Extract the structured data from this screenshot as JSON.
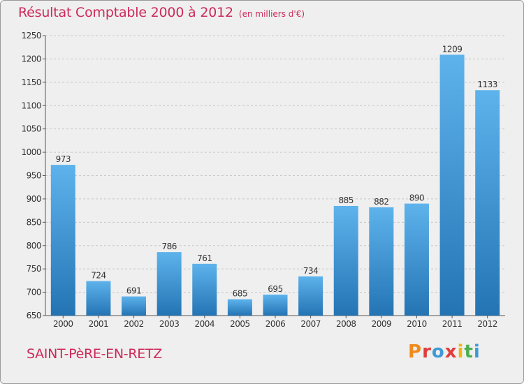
{
  "header": {
    "title": "Résultat Comptable 2000 à 2012",
    "unit": "(en milliers d'€)"
  },
  "footer": {
    "place": "SAINT-PèRE-EN-RETZ",
    "logo_text": "Proxiti"
  },
  "colors": {
    "accent": "#cc2a5a",
    "bar_top": "#5eb3ec",
    "bar_bottom": "#2474b4",
    "background": "#efefef",
    "logo": [
      "#f08a1c",
      "#e23b3b",
      "#3e9ad6",
      "#e23b3b",
      "#f5b312",
      "#4caf50",
      "#3e9ad6"
    ]
  },
  "chart_data": {
    "type": "bar",
    "title": "Résultat Comptable 2000 à 2012",
    "categories": [
      "2000",
      "2001",
      "2002",
      "2003",
      "2004",
      "2005",
      "2006",
      "2007",
      "2008",
      "2009",
      "2010",
      "2011",
      "2012"
    ],
    "values": [
      973,
      724,
      691,
      786,
      761,
      685,
      695,
      734,
      885,
      882,
      890,
      1209,
      1133
    ],
    "ylim": [
      650,
      1250
    ],
    "yticks": [
      650,
      700,
      750,
      800,
      850,
      900,
      950,
      1000,
      1050,
      1100,
      1150,
      1200,
      1250
    ],
    "grid": true,
    "data_labels": true
  }
}
